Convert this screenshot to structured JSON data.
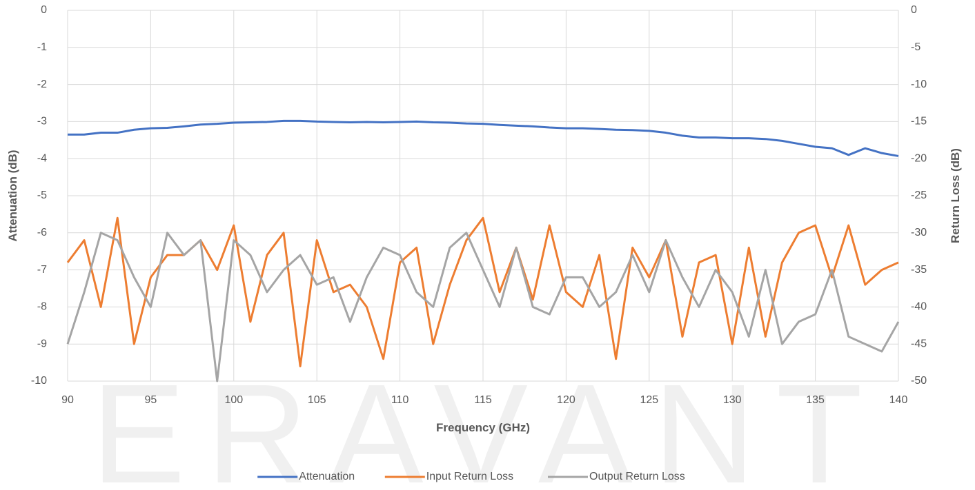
{
  "chart_data": {
    "type": "line",
    "watermark": "ERAVANT",
    "x_label": "Frequency (GHz)",
    "y_label": "Attenuation (dB)",
    "y2_label": "Return Loss (dB)",
    "xlim": [
      90,
      140
    ],
    "xticks": [
      90,
      95,
      100,
      105,
      110,
      115,
      120,
      125,
      130,
      135,
      140
    ],
    "ylim": [
      -10,
      0
    ],
    "yticks": [
      0,
      -1,
      -2,
      -3,
      -4,
      -5,
      -6,
      -7,
      -8,
      -9,
      -10
    ],
    "y2lim": [
      -50,
      0
    ],
    "y2ticks": [
      0,
      -5,
      -10,
      -15,
      -20,
      -25,
      -30,
      -35,
      -40,
      -45,
      -50
    ],
    "grid": true,
    "legend": "bottom",
    "x": [
      90,
      91,
      92,
      93,
      94,
      95,
      96,
      97,
      98,
      99,
      100,
      101,
      102,
      103,
      104,
      105,
      106,
      107,
      108,
      109,
      110,
      111,
      112,
      113,
      114,
      115,
      116,
      117,
      118,
      119,
      120,
      121,
      122,
      123,
      124,
      125,
      126,
      127,
      128,
      129,
      130,
      131,
      132,
      133,
      134,
      135,
      136,
      137,
      138,
      139,
      140
    ],
    "series": [
      {
        "name": "Attenuation",
        "color": "#4472c4",
        "axis": "y",
        "values": [
          -3.35,
          -3.35,
          -3.3,
          -3.3,
          -3.22,
          -3.18,
          -3.17,
          -3.13,
          -3.08,
          -3.06,
          -3.03,
          -3.02,
          -3.01,
          -2.98,
          -2.98,
          -3.0,
          -3.01,
          -3.02,
          -3.01,
          -3.02,
          -3.01,
          -3.0,
          -3.02,
          -3.03,
          -3.05,
          -3.06,
          -3.09,
          -3.11,
          -3.13,
          -3.16,
          -3.18,
          -3.18,
          -3.2,
          -3.22,
          -3.23,
          -3.25,
          -3.3,
          -3.38,
          -3.43,
          -3.43,
          -3.45,
          -3.45,
          -3.47,
          -3.52,
          -3.6,
          -3.68,
          -3.72,
          -3.9,
          -3.72,
          -3.85,
          -3.93
        ]
      },
      {
        "name": "Input Return Loss",
        "color": "#ed7d31",
        "axis": "y2",
        "values": [
          -34,
          -31,
          -40,
          -28,
          -45,
          -36,
          -33,
          -33,
          -31,
          -35,
          -29,
          -42,
          -33,
          -30,
          -48,
          -31,
          -38,
          -37,
          -40,
          -47,
          -34,
          -32,
          -45,
          -37,
          -31,
          -28,
          -38,
          -32,
          -39,
          -29,
          -38,
          -40,
          -33,
          -47,
          -32,
          -36,
          -31,
          -44,
          -34,
          -33,
          -45,
          -32,
          -44,
          -34,
          -30,
          -29,
          -36,
          -29,
          -37,
          -35,
          -34
        ]
      },
      {
        "name": "Output Return Loss",
        "color": "#a5a5a5",
        "axis": "y2",
        "values": [
          -45,
          -38,
          -30,
          -31,
          -36,
          -40,
          -30,
          -33,
          -31,
          -50,
          -31,
          -33,
          -38,
          -35,
          -33,
          -37,
          -36,
          -42,
          -36,
          -32,
          -33,
          -38,
          -40,
          -32,
          -30,
          -35,
          -40,
          -32,
          -40,
          -41,
          -36,
          -36,
          -40,
          -38,
          -33,
          -38,
          -31,
          -36,
          -40,
          -35,
          -38,
          -44,
          -35,
          -45,
          -42,
          -41,
          -35,
          -44,
          -45,
          -46,
          -42
        ]
      }
    ]
  }
}
